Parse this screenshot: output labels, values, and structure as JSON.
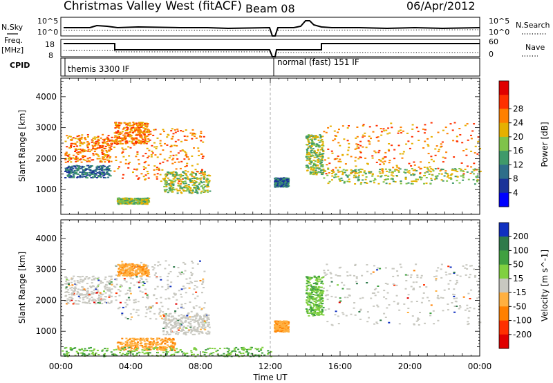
{
  "header": {
    "station": "Christmas Valley West (fitACF)",
    "beam": "Beam 08",
    "date": "06/Apr/2012"
  },
  "status_panels": {
    "nsky_label": "N.Sky",
    "nsky_ticks": [
      "10^5",
      "10^0"
    ],
    "nsearch_label": "N.Search",
    "freq_label_1": "Freq.",
    "freq_label_2": "[MHz]",
    "freq_ticks": [
      "18",
      "8"
    ],
    "nave_ticks": [
      "60",
      "0"
    ],
    "nave_label": "Nave",
    "cpid_label": "CPID",
    "cpid_segments": [
      "themis 3300 IF",
      "normal (fast) 151 IF"
    ]
  },
  "chart_data": [
    {
      "type": "heatmap",
      "panel": "power",
      "ylabel": "Slant Range [km]",
      "ylim": [
        200,
        4600
      ],
      "yticks": [
        1000,
        2000,
        3000,
        4000
      ],
      "xlim": [
        0,
        24
      ],
      "colorbar": {
        "label": "Power [dB]",
        "ticks": [
          4,
          8,
          12,
          16,
          20,
          24,
          28
        ],
        "colors": [
          "#0000ff",
          "#1a3399",
          "#2e6e8a",
          "#3f9a6a",
          "#7fc34a",
          "#e6b000",
          "#ff8000",
          "#ff3000",
          "#e00000"
        ]
      },
      "regions": [
        {
          "t": [
            0.2,
            2.9
          ],
          "r": [
            1900,
            2800
          ],
          "level": "high"
        },
        {
          "t": [
            0.2,
            2.8
          ],
          "r": [
            1400,
            1800
          ],
          "level": "low"
        },
        {
          "t": [
            3.0,
            5.0
          ],
          "r": [
            2500,
            3200
          ],
          "level": "high"
        },
        {
          "t": [
            3.0,
            8.2
          ],
          "r": [
            1200,
            3000
          ],
          "level": "high"
        },
        {
          "t": [
            5.8,
            8.5
          ],
          "r": [
            900,
            1600
          ],
          "level": "mid"
        },
        {
          "t": [
            3.2,
            5.0
          ],
          "r": [
            550,
            750
          ],
          "level": "mid"
        },
        {
          "t": [
            12.2,
            13.0
          ],
          "r": [
            1100,
            1400
          ],
          "level": "low"
        },
        {
          "t": [
            14.0,
            15.0
          ],
          "r": [
            1500,
            2800
          ],
          "level": "mid"
        },
        {
          "t": [
            15.0,
            24.0
          ],
          "r": [
            1500,
            3200
          ],
          "level": "high"
        },
        {
          "t": [
            15.0,
            24.0
          ],
          "r": [
            1200,
            1700
          ],
          "level": "mid"
        }
      ]
    },
    {
      "type": "heatmap",
      "panel": "velocity",
      "ylabel": "Slant Range [km]",
      "xlabel": "Time UT",
      "ylim": [
        200,
        4600
      ],
      "yticks": [
        1000,
        2000,
        3000,
        4000
      ],
      "xlim": [
        0,
        24
      ],
      "xticks": [
        "00:00",
        "04:00",
        "08:00",
        "12:00",
        "16:00",
        "20:00",
        "00:00"
      ],
      "colorbar": {
        "label": "Velocity [m s^-1]",
        "ticks": [
          200,
          100,
          50,
          15,
          -15,
          -50,
          -100,
          -200
        ],
        "colors": [
          "#1030c0",
          "#2e7a4a",
          "#3fa040",
          "#80d040",
          "#c8c8c0",
          "#ffb040",
          "#ff8000",
          "#ff3000",
          "#e00000"
        ]
      },
      "regions": [
        {
          "t": [
            0.2,
            2.9
          ],
          "r": [
            1900,
            2800
          ],
          "level": "ground"
        },
        {
          "t": [
            3.0,
            8.2
          ],
          "r": [
            1400,
            3300
          ],
          "level": "ground"
        },
        {
          "t": [
            3.2,
            5.0
          ],
          "r": [
            2800,
            3200
          ],
          "level": "negative"
        },
        {
          "t": [
            3.2,
            6.5
          ],
          "r": [
            400,
            800
          ],
          "level": "negative"
        },
        {
          "t": [
            5.8,
            8.5
          ],
          "r": [
            900,
            1600
          ],
          "level": "ground"
        },
        {
          "t": [
            12.2,
            13.0
          ],
          "r": [
            1000,
            1350
          ],
          "level": "negative"
        },
        {
          "t": [
            15.0,
            24.0
          ],
          "r": [
            1200,
            3200
          ],
          "level": "ground"
        },
        {
          "t": [
            0.0,
            12.0
          ],
          "r": [
            200,
            500
          ],
          "level": "positive"
        },
        {
          "t": [
            14.0,
            15.0
          ],
          "r": [
            1500,
            2800
          ],
          "level": "positive"
        }
      ]
    }
  ]
}
